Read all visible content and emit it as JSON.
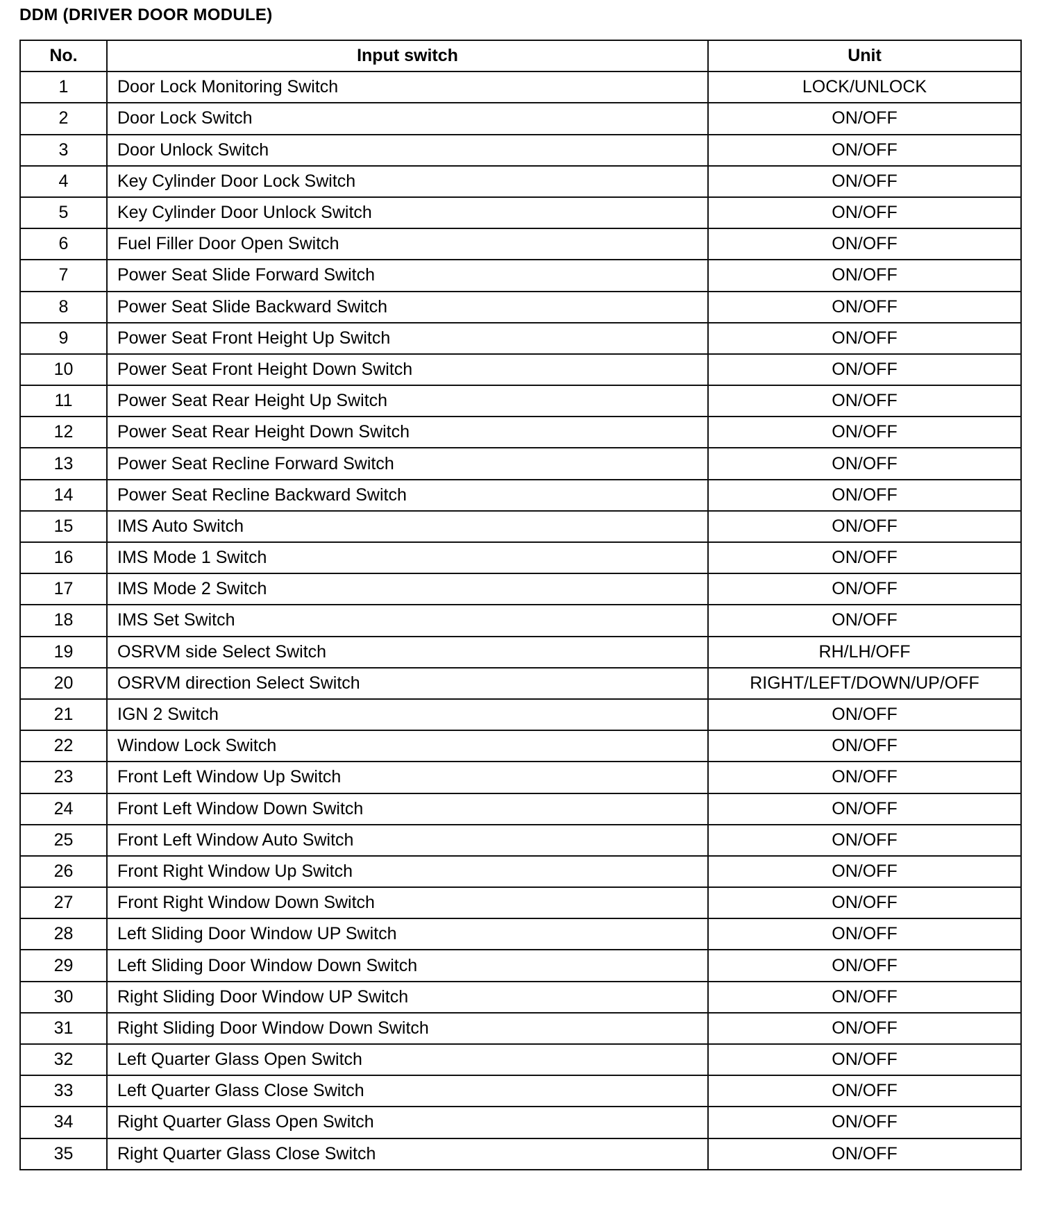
{
  "title": "DDM (DRIVER DOOR MODULE)",
  "table": {
    "headers": [
      "No.",
      "Input switch",
      "Unit"
    ],
    "rows": [
      [
        "1",
        "Door Lock Monitoring Switch",
        "LOCK/UNLOCK"
      ],
      [
        "2",
        "Door Lock Switch",
        "ON/OFF"
      ],
      [
        "3",
        "Door Unlock Switch",
        "ON/OFF"
      ],
      [
        "4",
        "Key Cylinder Door Lock Switch",
        "ON/OFF"
      ],
      [
        "5",
        "Key Cylinder Door Unlock Switch",
        "ON/OFF"
      ],
      [
        "6",
        "Fuel Filler Door Open Switch",
        "ON/OFF"
      ],
      [
        "7",
        "Power Seat Slide Forward Switch",
        "ON/OFF"
      ],
      [
        "8",
        "Power Seat Slide Backward Switch",
        "ON/OFF"
      ],
      [
        "9",
        "Power Seat Front Height Up Switch",
        "ON/OFF"
      ],
      [
        "10",
        "Power Seat Front Height Down Switch",
        "ON/OFF"
      ],
      [
        "11",
        "Power Seat Rear Height Up Switch",
        "ON/OFF"
      ],
      [
        "12",
        "Power Seat Rear Height Down Switch",
        "ON/OFF"
      ],
      [
        "13",
        "Power Seat Recline Forward Switch",
        "ON/OFF"
      ],
      [
        "14",
        "Power Seat Recline Backward Switch",
        "ON/OFF"
      ],
      [
        "15",
        "IMS Auto Switch",
        "ON/OFF"
      ],
      [
        "16",
        "IMS Mode 1 Switch",
        "ON/OFF"
      ],
      [
        "17",
        "IMS Mode 2 Switch",
        "ON/OFF"
      ],
      [
        "18",
        "IMS Set Switch",
        "ON/OFF"
      ],
      [
        "19",
        "OSRVM side Select Switch",
        "RH/LH/OFF"
      ],
      [
        "20",
        "OSRVM direction Select Switch",
        "RIGHT/LEFT/DOWN/UP/OFF"
      ],
      [
        "21",
        "IGN 2 Switch",
        "ON/OFF"
      ],
      [
        "22",
        "Window Lock Switch",
        "ON/OFF"
      ],
      [
        "23",
        "Front Left Window Up Switch",
        "ON/OFF"
      ],
      [
        "24",
        "Front Left Window Down Switch",
        "ON/OFF"
      ],
      [
        "25",
        "Front Left Window Auto Switch",
        "ON/OFF"
      ],
      [
        "26",
        "Front Right Window Up Switch",
        "ON/OFF"
      ],
      [
        "27",
        "Front Right Window Down Switch",
        "ON/OFF"
      ],
      [
        "28",
        "Left Sliding Door Window UP Switch",
        "ON/OFF"
      ],
      [
        "29",
        "Left Sliding Door Window Down Switch",
        "ON/OFF"
      ],
      [
        "30",
        "Right Sliding Door Window UP Switch",
        "ON/OFF"
      ],
      [
        "31",
        "Right Sliding Door Window Down Switch",
        "ON/OFF"
      ],
      [
        "32",
        "Left Quarter Glass Open Switch",
        "ON/OFF"
      ],
      [
        "33",
        "Left Quarter Glass Close Switch",
        "ON/OFF"
      ],
      [
        "34",
        "Right Quarter Glass Open Switch",
        "ON/OFF"
      ],
      [
        "35",
        "Right Quarter Glass Close Switch",
        "ON/OFF"
      ]
    ]
  }
}
